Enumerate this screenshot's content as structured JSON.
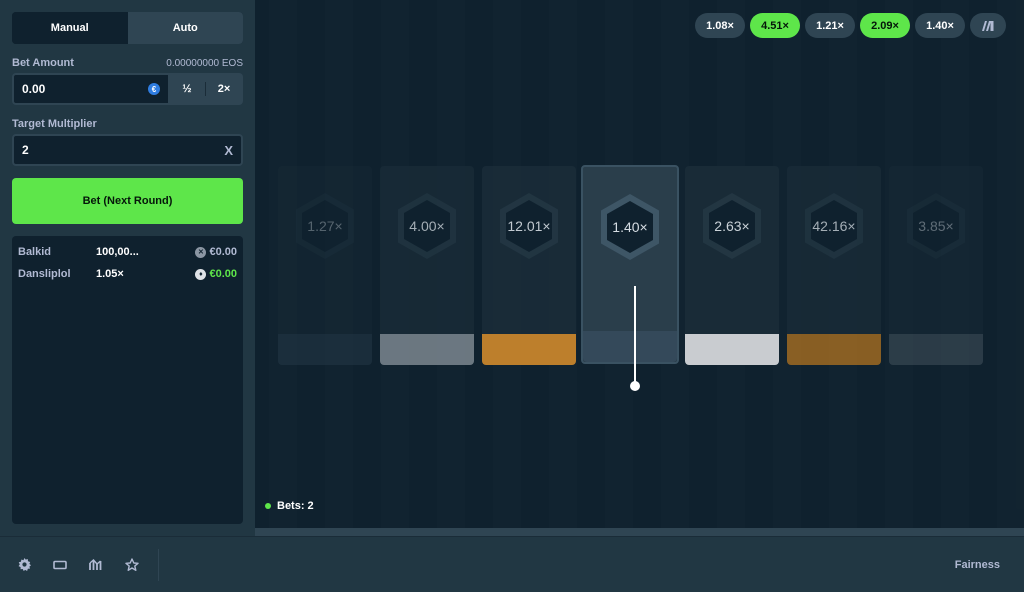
{
  "sidebar": {
    "tabs": {
      "manual": "Manual",
      "auto": "Auto"
    },
    "bet_amount": {
      "label": "Bet Amount",
      "balance": "0.00000000 EOS",
      "value": "0.00",
      "currency_icon": "euro-coin-icon",
      "half_label": "½",
      "double_label": "2×"
    },
    "target": {
      "label": "Target Multiplier",
      "value": "2",
      "clear_label": "X"
    },
    "bet_button": "Bet (Next Round)",
    "players": [
      {
        "name": "Balkid",
        "multiplier": "100,00...",
        "payout": "€0.00",
        "icon": "x-coin-icon",
        "win": false
      },
      {
        "name": "Dansliplol",
        "multiplier": "1.05×",
        "payout": "€0.00",
        "icon": "eth-coin-icon",
        "win": true
      }
    ]
  },
  "game": {
    "history": [
      {
        "label": "1.08×",
        "win": false
      },
      {
        "label": "4.51×",
        "win": true
      },
      {
        "label": "1.21×",
        "win": false
      },
      {
        "label": "2.09×",
        "win": true
      },
      {
        "label": "1.40×",
        "win": false
      }
    ],
    "tiles": [
      {
        "label": "1.27×",
        "band": "#2f4553",
        "opacity": 0.35
      },
      {
        "label": "4.00×",
        "band": "#8a949c",
        "opacity": 0.75
      },
      {
        "label": "12.01×",
        "band": "#d08a2c",
        "opacity": 0.9
      },
      {
        "label": "1.40×",
        "band": "#2f4553",
        "opacity": 1,
        "center": true
      },
      {
        "label": "2.63×",
        "band": "#d3d6d9",
        "opacity": 0.95
      },
      {
        "label": "42.16×",
        "band": "#b17320",
        "opacity": 0.75
      },
      {
        "label": "3.85×",
        "band": "#55646e",
        "opacity": 0.4
      }
    ],
    "bets_label": "Bets: 2"
  },
  "footer": {
    "icons": [
      "settings-icon",
      "theatre-mode-icon",
      "stats-icon",
      "favorite-star-icon"
    ],
    "fairness": "Fairness"
  },
  "colors": {
    "accent_green": "#5ee64a",
    "panel": "#213743",
    "game_bg": "#0f212e"
  }
}
